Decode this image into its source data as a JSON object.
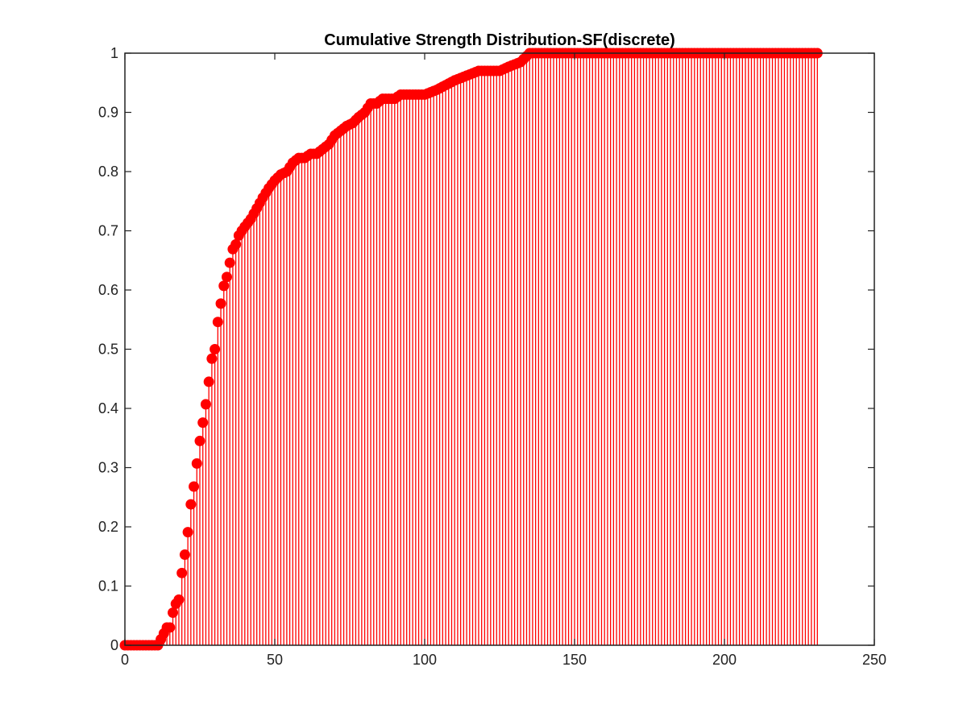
{
  "chart_data": {
    "type": "stem",
    "title": "Cumulative Strength Distribution-SF(discrete)",
    "xlabel": "",
    "ylabel": "",
    "xlim": [
      0,
      250
    ],
    "ylim": [
      0,
      1
    ],
    "xticks": [
      "0",
      "50",
      "100",
      "150",
      "200",
      "250"
    ],
    "yticks": [
      "0",
      "0.1",
      "0.2",
      "0.3",
      "0.4",
      "0.5",
      "0.6",
      "0.7",
      "0.8",
      "0.9",
      "1"
    ],
    "grid": false,
    "legend": "none",
    "color": "#ff0000",
    "x_start": 0,
    "x_end": 231,
    "keypoints": [
      [
        0,
        0
      ],
      [
        11,
        0
      ],
      [
        12,
        0.01
      ],
      [
        13,
        0.02
      ],
      [
        14,
        0.03
      ],
      [
        15,
        0.03
      ],
      [
        16,
        0.055
      ],
      [
        17,
        0.07
      ],
      [
        18,
        0.077
      ],
      [
        19,
        0.122
      ],
      [
        20,
        0.153
      ],
      [
        21,
        0.191
      ],
      [
        22,
        0.238
      ],
      [
        23,
        0.268
      ],
      [
        24,
        0.307
      ],
      [
        25,
        0.345
      ],
      [
        26,
        0.376
      ],
      [
        27,
        0.407
      ],
      [
        28,
        0.445
      ],
      [
        29,
        0.484
      ],
      [
        30,
        0.5
      ],
      [
        31,
        0.546
      ],
      [
        32,
        0.577
      ],
      [
        33,
        0.607
      ],
      [
        34,
        0.622
      ],
      [
        35,
        0.646
      ],
      [
        36,
        0.669
      ],
      [
        37,
        0.677
      ],
      [
        38,
        0.692
      ],
      [
        39,
        0.7
      ],
      [
        40,
        0.707
      ],
      [
        42,
        0.72
      ],
      [
        44,
        0.738
      ],
      [
        46,
        0.756
      ],
      [
        48,
        0.772
      ],
      [
        50,
        0.785
      ],
      [
        52,
        0.795
      ],
      [
        54,
        0.8
      ],
      [
        56,
        0.815
      ],
      [
        58,
        0.823
      ],
      [
        60,
        0.823
      ],
      [
        62,
        0.83
      ],
      [
        64,
        0.83
      ],
      [
        66,
        0.838
      ],
      [
        68,
        0.846
      ],
      [
        70,
        0.861
      ],
      [
        72,
        0.869
      ],
      [
        74,
        0.877
      ],
      [
        76,
        0.882
      ],
      [
        78,
        0.892
      ],
      [
        80,
        0.9
      ],
      [
        82,
        0.915
      ],
      [
        84,
        0.915
      ],
      [
        86,
        0.923
      ],
      [
        88,
        0.923
      ],
      [
        90,
        0.923
      ],
      [
        92,
        0.93
      ],
      [
        100,
        0.93
      ],
      [
        104,
        0.938
      ],
      [
        110,
        0.954
      ],
      [
        114,
        0.962
      ],
      [
        118,
        0.97
      ],
      [
        125,
        0.97
      ],
      [
        128,
        0.977
      ],
      [
        132,
        0.985
      ],
      [
        135,
        1.0
      ],
      [
        231,
        1.0
      ]
    ]
  }
}
